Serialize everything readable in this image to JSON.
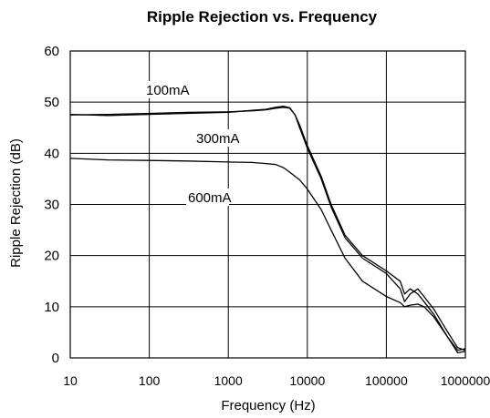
{
  "chart_data": {
    "type": "line",
    "title": "Ripple Rejection vs. Frequency",
    "xlabel": "Frequency (Hz)",
    "ylabel": "Ripple Rejection (dB)",
    "x_scale": "log",
    "xlim": [
      10,
      1000000
    ],
    "ylim": [
      0,
      60
    ],
    "grid": true,
    "x_ticks": [
      10,
      100,
      1000,
      10000,
      100000,
      1000000
    ],
    "x_tick_labels": [
      "10",
      "100",
      "1000",
      "10000",
      "100000",
      "1000000"
    ],
    "y_ticks": [
      0,
      10,
      20,
      30,
      40,
      50,
      60
    ],
    "y_tick_labels": [
      "0",
      "10",
      "20",
      "30",
      "40",
      "50",
      "60"
    ],
    "annotations": [
      "100mA",
      "300mA",
      "600mA"
    ],
    "series": [
      {
        "name": "100mA",
        "x": [
          10,
          30,
          100,
          300,
          1000,
          2000,
          3000,
          4000,
          5000,
          6000,
          7000,
          8000,
          10000,
          15000,
          20000,
          30000,
          50000,
          100000,
          150000,
          170000,
          200000,
          250000,
          300000,
          400000,
          600000,
          800000,
          1000000
        ],
        "y": [
          47.5,
          47.6,
          47.8,
          48.0,
          48.1,
          48.3,
          48.5,
          48.8,
          49.0,
          48.8,
          47.5,
          45.5,
          41.5,
          35.5,
          30.0,
          24.0,
          20.0,
          17.0,
          15.0,
          12.5,
          13.5,
          12.5,
          11.0,
          8.5,
          4.0,
          1.5,
          1.8
        ]
      },
      {
        "name": "300mA",
        "x": [
          10,
          30,
          100,
          300,
          1000,
          2000,
          3000,
          4000,
          5000,
          6000,
          7000,
          8000,
          10000,
          15000,
          20000,
          30000,
          50000,
          100000,
          150000,
          170000,
          200000,
          250000,
          300000,
          400000,
          600000,
          800000,
          1000000
        ],
        "y": [
          47.6,
          47.4,
          47.6,
          47.8,
          48.0,
          48.4,
          48.6,
          49.0,
          49.2,
          48.9,
          47.5,
          45.0,
          41.0,
          35.0,
          29.5,
          23.5,
          19.5,
          16.5,
          13.5,
          11.0,
          12.5,
          13.5,
          12.0,
          9.5,
          5.0,
          2.0,
          1.5
        ]
      },
      {
        "name": "600mA",
        "x": [
          10,
          30,
          100,
          300,
          1000,
          2000,
          3000,
          4000,
          5000,
          6000,
          7000,
          8000,
          10000,
          15000,
          20000,
          30000,
          50000,
          100000,
          150000,
          170000,
          200000,
          250000,
          300000,
          400000,
          600000,
          800000,
          1000000
        ],
        "y": [
          39.0,
          38.7,
          38.6,
          38.5,
          38.3,
          38.2,
          38.0,
          37.8,
          37.2,
          36.3,
          35.5,
          34.8,
          33.0,
          29.0,
          25.0,
          19.5,
          15.0,
          12.0,
          10.8,
          10.0,
          10.3,
          10.5,
          10.0,
          8.0,
          4.0,
          1.0,
          1.3
        ]
      }
    ]
  }
}
